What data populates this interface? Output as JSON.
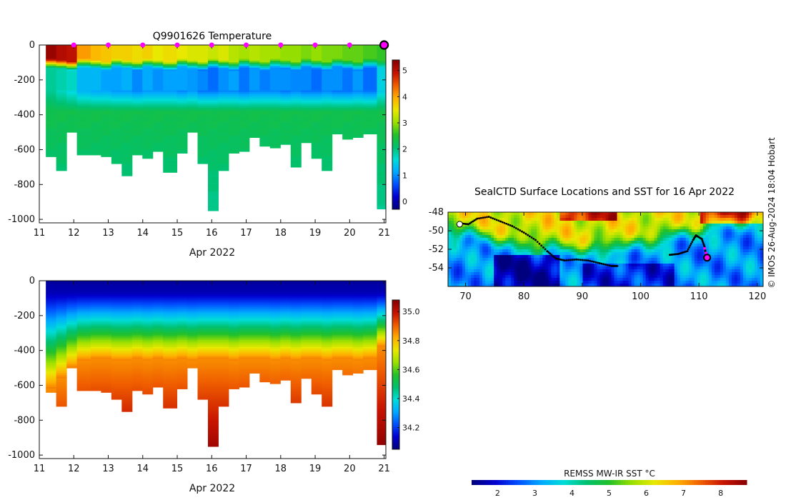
{
  "credit": "© IMOS 26-Aug-2024 18:04 Hobart",
  "sst_colorbar": {
    "label": "REMSS MW-IR SST °C",
    "ticks": [
      2,
      3,
      4,
      5,
      6,
      7,
      8
    ],
    "range": [
      1.3,
      8.7
    ]
  },
  "palette": [
    "#00007f",
    "#0000d0",
    "#0050ff",
    "#00a8ff",
    "#00dcd8",
    "#00c070",
    "#22c02a",
    "#9ae000",
    "#e8e800",
    "#ffb000",
    "#f06000",
    "#c81400",
    "#8b0000"
  ],
  "chart_data": [
    {
      "type": "heatmap",
      "title": "Q9901626  Temperature",
      "xlabel": "Apr 2022",
      "ylabel": "",
      "x_ticks": [
        11,
        12,
        13,
        14,
        15,
        16,
        17,
        18,
        19,
        20,
        21
      ],
      "xlim": [
        11,
        21.05
      ],
      "y_ticks": [
        0,
        -200,
        -400,
        -600,
        -800,
        -1000
      ],
      "ylim": [
        -1020,
        0
      ],
      "colorbar": {
        "ticks": [
          0,
          1,
          2,
          3,
          4,
          5
        ],
        "range": [
          -0.3,
          5.4
        ]
      },
      "markers": [
        12,
        13,
        14,
        15,
        16,
        17,
        18,
        19,
        20
      ],
      "latest_profile_day": 21,
      "profile_days": [
        11.2,
        11.5,
        11.8,
        12.1,
        12.5,
        12.8,
        13.1,
        13.4,
        13.7,
        14.0,
        14.3,
        14.6,
        15.0,
        15.3,
        15.6,
        15.9,
        16.2,
        16.5,
        16.8,
        17.1,
        17.4,
        17.7,
        18.0,
        18.3,
        18.6,
        18.9,
        19.2,
        19.5,
        19.8,
        20.1,
        20.4,
        20.8
      ],
      "profile_max_depth": [
        640,
        720,
        500,
        625,
        630,
        635,
        680,
        745,
        630,
        650,
        610,
        730,
        620,
        500,
        675,
        945,
        715,
        615,
        605,
        525,
        575,
        585,
        565,
        695,
        560,
        650,
        715,
        505,
        535,
        525,
        505,
        940
      ],
      "profile_widths_days": [
        0.3,
        0.3,
        0.3,
        0.4,
        0.3,
        0.3,
        0.3,
        0.3,
        0.3,
        0.3,
        0.3,
        0.4,
        0.3,
        0.3,
        0.3,
        0.3,
        0.3,
        0.3,
        0.3,
        0.3,
        0.3,
        0.3,
        0.3,
        0.3,
        0.3,
        0.3,
        0.3,
        0.3,
        0.3,
        0.3,
        0.4,
        0.3
      ],
      "value_range": [
        -0.3,
        5.4
      ],
      "profile_values": {
        "surface": [
          5.3,
          5.1,
          5.0,
          4.1,
          3.9,
          3.8,
          3.7,
          3.7,
          3.6,
          3.7,
          3.5,
          3.6,
          3.5,
          3.4,
          3.4,
          3.3,
          3.4,
          3.2,
          3.1,
          3.2,
          3.1,
          3.1,
          3.0,
          3.0,
          2.9,
          3.0,
          2.9,
          2.9,
          2.8,
          2.8,
          2.7,
          2.6
        ],
        "thermocline_depth": 110,
        "minimum_layer": [
          1.9,
          1.7,
          1.5,
          1.2,
          1.1,
          1.1,
          1.0,
          1.0,
          0.9,
          1.0,
          1.0,
          1.0,
          0.9,
          1.0,
          0.8,
          0.8,
          0.9,
          0.9,
          0.8,
          0.9,
          0.9,
          0.9,
          0.8,
          0.9,
          0.8,
          0.8,
          0.9,
          0.8,
          0.8,
          0.9,
          0.8,
          1.4
        ],
        "deep": 2.3
      }
    },
    {
      "type": "heatmap",
      "title": "",
      "xlabel": "Apr 2022",
      "ylabel": "",
      "x_ticks": [
        11,
        12,
        13,
        14,
        15,
        16,
        17,
        18,
        19,
        20,
        21
      ],
      "xlim": [
        11,
        21.05
      ],
      "y_ticks": [
        0,
        -200,
        -400,
        -600,
        -800,
        -1000
      ],
      "ylim": [
        -1020,
        0
      ],
      "colorbar": {
        "ticks": [
          34.2,
          34.4,
          34.6,
          34.8,
          35.0
        ],
        "range": [
          34.05,
          35.08
        ]
      },
      "profile_days": [
        11.2,
        11.5,
        11.8,
        12.1,
        12.5,
        12.8,
        13.1,
        13.4,
        13.7,
        14.0,
        14.3,
        14.6,
        15.0,
        15.3,
        15.6,
        15.9,
        16.2,
        16.5,
        16.8,
        17.1,
        17.4,
        17.7,
        18.0,
        18.3,
        18.6,
        18.9,
        19.2,
        19.5,
        19.8,
        20.1,
        20.4,
        20.8
      ],
      "profile_max_depth": [
        640,
        720,
        500,
        625,
        630,
        635,
        680,
        745,
        630,
        650,
        610,
        730,
        620,
        500,
        675,
        945,
        715,
        615,
        605,
        525,
        575,
        585,
        565,
        695,
        560,
        650,
        715,
        505,
        535,
        525,
        505,
        940
      ],
      "profile_widths_days": [
        0.3,
        0.3,
        0.3,
        0.4,
        0.3,
        0.3,
        0.3,
        0.3,
        0.3,
        0.3,
        0.3,
        0.4,
        0.3,
        0.3,
        0.3,
        0.3,
        0.3,
        0.3,
        0.3,
        0.3,
        0.3,
        0.3,
        0.3,
        0.3,
        0.3,
        0.3,
        0.3,
        0.3,
        0.3,
        0.3,
        0.4,
        0.3
      ],
      "value_range": [
        34.05,
        35.08
      ],
      "profile_values": {
        "surface": 34.08,
        "halocline_depth": [
          420,
          360,
          300,
          260,
          250,
          250,
          260,
          260,
          250,
          260,
          250,
          260,
          250,
          260,
          250,
          250,
          250,
          260,
          250,
          250,
          250,
          260,
          250,
          260,
          250,
          250,
          260,
          250,
          250,
          260,
          250,
          180
        ],
        "deep": 35.02
      }
    },
    {
      "type": "heatmap",
      "title": "SealCTD Surface Locations and SST for 16 Apr 2022",
      "xlabel": "",
      "ylabel": "",
      "x_ticks": [
        70,
        80,
        90,
        100,
        110,
        120
      ],
      "xlim": [
        67,
        121
      ],
      "y_ticks": [
        -48,
        -50,
        -52,
        -54
      ],
      "ylim": [
        -56,
        -48
      ],
      "track": [
        {
          "lon": 69.0,
          "lat": -49.2
        },
        {
          "lon": 70.5,
          "lat": -49.3
        },
        {
          "lon": 72.0,
          "lat": -48.7
        },
        {
          "lon": 74.0,
          "lat": -48.5
        },
        {
          "lon": 76.0,
          "lat": -49.0
        },
        {
          "lon": 78.0,
          "lat": -49.5
        },
        {
          "lon": 80.0,
          "lat": -50.2
        },
        {
          "lon": 82.0,
          "lat": -51.0
        },
        {
          "lon": 84.0,
          "lat": -52.2
        },
        {
          "lon": 85.5,
          "lat": -53.0
        },
        {
          "lon": 87.0,
          "lat": -53.2
        },
        {
          "lon": 89.0,
          "lat": -53.1
        },
        {
          "lon": 91.0,
          "lat": -53.2
        },
        {
          "lon": 93.0,
          "lat": -53.5
        },
        {
          "lon": 95.0,
          "lat": -53.8
        },
        {
          "lon": 96.0,
          "lat": -53.8
        },
        {
          "lon": 105.0,
          "lat": -52.6
        },
        {
          "lon": 106.5,
          "lat": -52.5
        },
        {
          "lon": 108.0,
          "lat": -52.2
        },
        {
          "lon": 109.0,
          "lat": -51.0
        },
        {
          "lon": 109.5,
          "lat": -50.5
        },
        {
          "lon": 110.5,
          "lat": -50.9
        },
        {
          "lon": 111.0,
          "lat": -51.8
        },
        {
          "lon": 111.2,
          "lat": -52.6
        }
      ],
      "recent_track": [
        {
          "lon": 111.0,
          "lat": -51.9
        },
        {
          "lon": 111.2,
          "lat": -52.4
        },
        {
          "lon": 111.3,
          "lat": -52.8
        }
      ],
      "latest_position": {
        "lon": 111.4,
        "lat": -52.9
      },
      "start_position": {
        "lon": 69.0,
        "lat": -49.3
      }
    }
  ]
}
